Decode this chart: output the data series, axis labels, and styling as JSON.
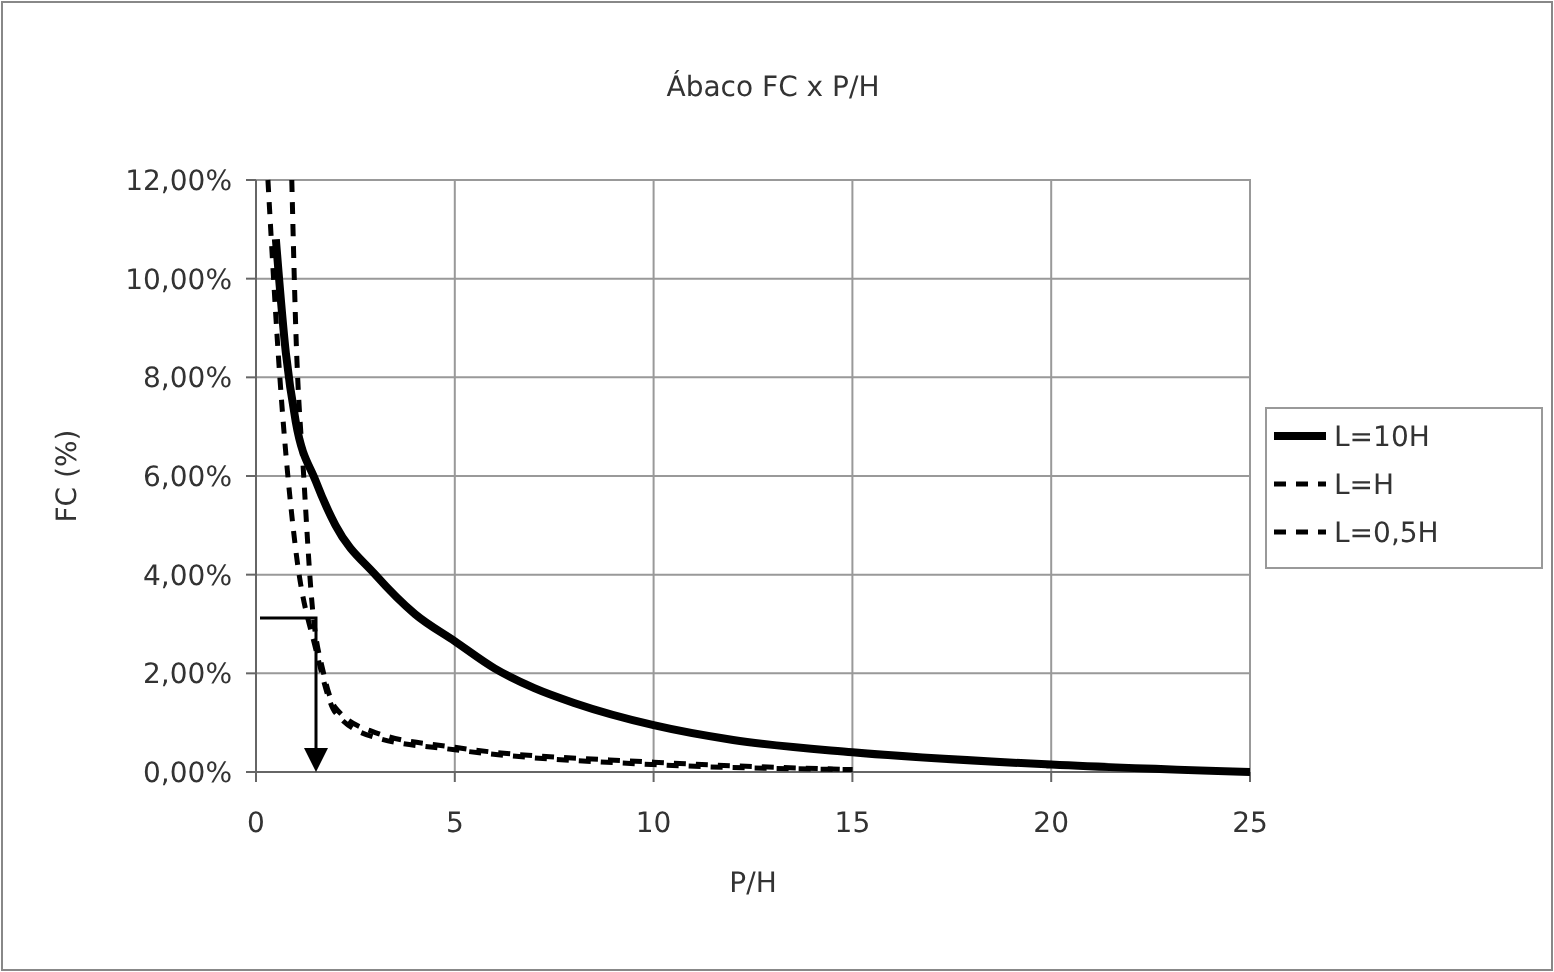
{
  "chart_data": {
    "type": "line",
    "title": "Ábaco FC x P/H",
    "xlabel": "P/H",
    "ylabel": "FC (%)",
    "xlim": [
      0,
      25
    ],
    "xticks": [
      0,
      5,
      10,
      15,
      20,
      25
    ],
    "ylim": [
      0,
      12
    ],
    "yticks": [
      {
        "value": 0,
        "label": "0,00%"
      },
      {
        "value": 2,
        "label": "2,00%"
      },
      {
        "value": 4,
        "label": "4,00%"
      },
      {
        "value": 6,
        "label": "6,00%"
      },
      {
        "value": 8,
        "label": "8,00%"
      },
      {
        "value": 10,
        "label": "10,00%"
      },
      {
        "value": 12,
        "label": "12,00%"
      }
    ],
    "grid": true,
    "legend": "right",
    "marker": "none",
    "series": [
      {
        "name": "L=10H",
        "color": "#000000",
        "line_style": "solid",
        "x": [
          0.5,
          0.75,
          1,
          1.5,
          2,
          3,
          4,
          5,
          6,
          7,
          8,
          10,
          12,
          15,
          20,
          25
        ],
        "values": [
          10.8,
          8.5,
          7.1,
          5.9,
          5.0,
          4.0,
          3.2,
          2.65,
          2.1,
          1.7,
          1.4,
          0.95,
          0.65,
          0.4,
          0.15,
          0
        ]
      },
      {
        "name": "L=H",
        "color": "#000000",
        "line_style": "dashed",
        "x": [
          0.3,
          0.6,
          1,
          1.5,
          2,
          3,
          5,
          10,
          15
        ],
        "values": [
          12,
          8,
          4.5,
          2.5,
          1.2,
          0.7,
          0.45,
          0.15,
          0.05
        ]
      },
      {
        "name": "L=0,5H",
        "color": "#000000",
        "line_style": "dashed",
        "x": [
          0.9,
          1,
          1.2,
          1.4,
          1.7,
          2,
          3,
          5,
          10,
          15
        ],
        "values": [
          12,
          9,
          6,
          3.5,
          2.0,
          1.3,
          0.8,
          0.5,
          0.2,
          0.05
        ]
      }
    ]
  }
}
